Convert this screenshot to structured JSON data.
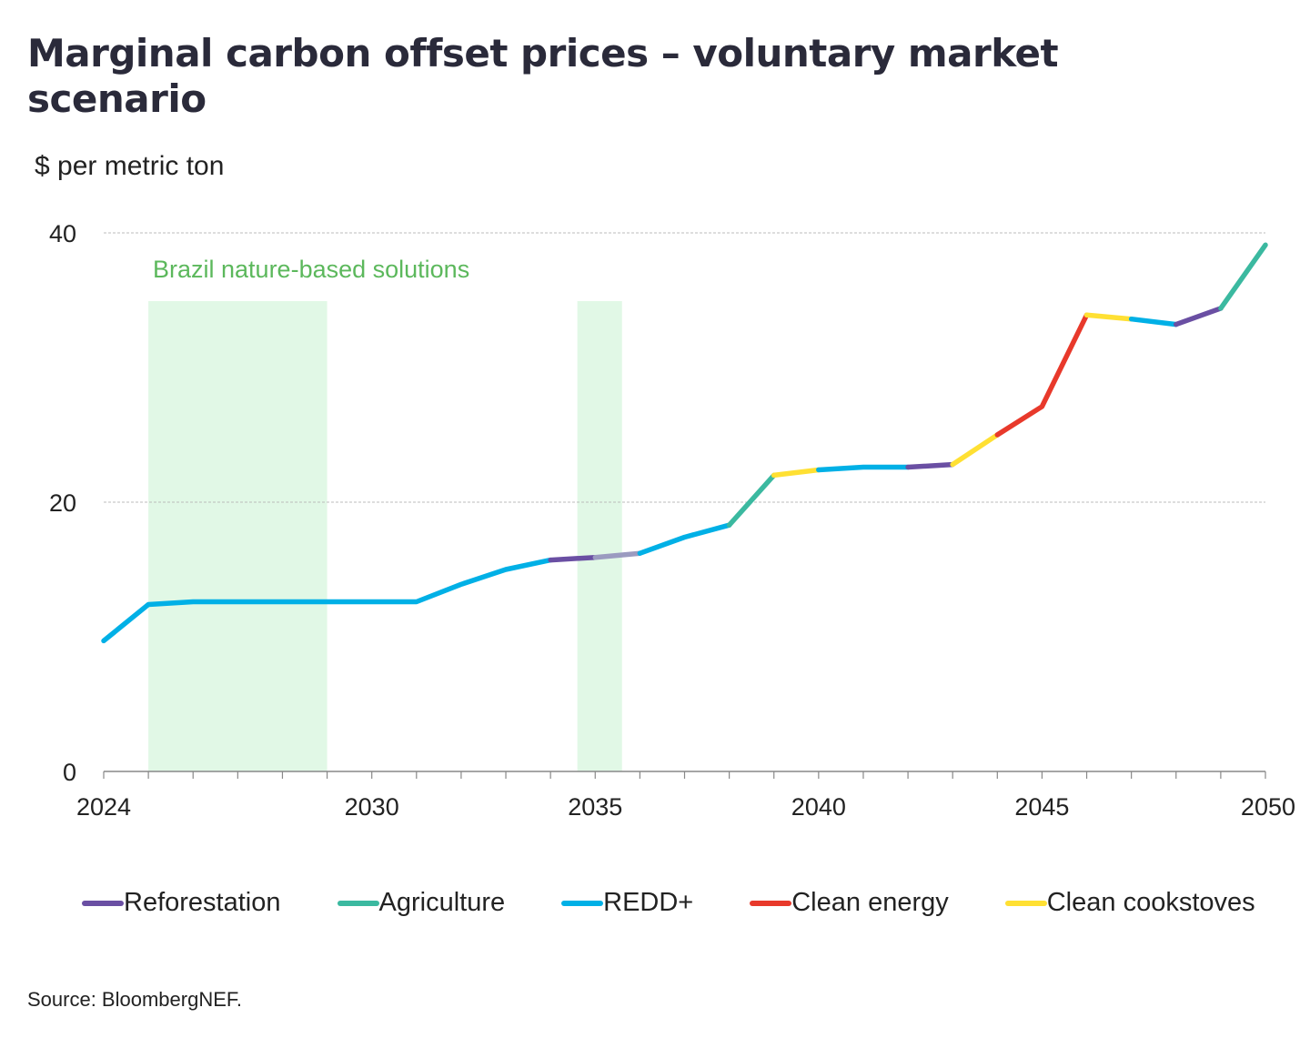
{
  "chart_data": {
    "type": "line",
    "title": "Marginal carbon offset prices – voluntary market scenario",
    "ylabel": "$ per metric ton",
    "xlabel": "",
    "xlim": [
      2024,
      2050
    ],
    "ylim": [
      0,
      40
    ],
    "y_ticks": [
      0,
      20,
      40
    ],
    "x_tick_labels": [
      2024,
      2030,
      2035,
      2040,
      2045,
      2050
    ],
    "grid": true,
    "legend_position": "bottom",
    "annotation": {
      "text": "Brazil nature-based solutions",
      "color": "#5cb85c",
      "bands": [
        [
          2025,
          2029
        ],
        [
          2034.6,
          2035.6
        ]
      ],
      "band_color": "#e1f8e6"
    },
    "series": [
      {
        "name": "Reforestation",
        "color": "#6a4fa3"
      },
      {
        "name": "Agriculture",
        "color": "#3bb9a0"
      },
      {
        "name": "REDD+",
        "color": "#00b0e6"
      },
      {
        "name": "Clean energy",
        "color": "#e8392b"
      },
      {
        "name": "Clean cookstoves",
        "color": "#ffe033"
      }
    ],
    "points": [
      {
        "x": 2024,
        "y": 9.7
      },
      {
        "x": 2025,
        "y": 12.4
      },
      {
        "x": 2026,
        "y": 12.6
      },
      {
        "x": 2027,
        "y": 12.6
      },
      {
        "x": 2028,
        "y": 12.6
      },
      {
        "x": 2029,
        "y": 12.6
      },
      {
        "x": 2030,
        "y": 12.6
      },
      {
        "x": 2031,
        "y": 12.6
      },
      {
        "x": 2032,
        "y": 13.9
      },
      {
        "x": 2033,
        "y": 15.0
      },
      {
        "x": 2034,
        "y": 15.7
      },
      {
        "x": 2035,
        "y": 15.9
      },
      {
        "x": 2036,
        "y": 16.2
      },
      {
        "x": 2037,
        "y": 17.4
      },
      {
        "x": 2038,
        "y": 18.3
      },
      {
        "x": 2039,
        "y": 22.0
      },
      {
        "x": 2040,
        "y": 22.4
      },
      {
        "x": 2041,
        "y": 22.6
      },
      {
        "x": 2042,
        "y": 22.6
      },
      {
        "x": 2043,
        "y": 22.8
      },
      {
        "x": 2044,
        "y": 25.0
      },
      {
        "x": 2045,
        "y": 27.1
      },
      {
        "x": 2046,
        "y": 33.9
      },
      {
        "x": 2047,
        "y": 33.6
      },
      {
        "x": 2048,
        "y": 33.2
      },
      {
        "x": 2049,
        "y": 34.4
      },
      {
        "x": 2050,
        "y": 39.1
      }
    ],
    "segments": [
      {
        "from": 2024,
        "to": 2034,
        "series": "REDD+"
      },
      {
        "from": 2034,
        "to": 2035,
        "series": "Reforestation"
      },
      {
        "from": 2035,
        "to": 2036,
        "series": "Reforestation",
        "color": "#9b9bc0"
      },
      {
        "from": 2036,
        "to": 2038,
        "series": "REDD+"
      },
      {
        "from": 2038,
        "to": 2039,
        "series": "Agriculture"
      },
      {
        "from": 2039,
        "to": 2040,
        "series": "Clean cookstoves"
      },
      {
        "from": 2040,
        "to": 2042,
        "series": "REDD+"
      },
      {
        "from": 2042,
        "to": 2043,
        "series": "Reforestation"
      },
      {
        "from": 2043,
        "to": 2044,
        "series": "Clean cookstoves"
      },
      {
        "from": 2044,
        "to": 2046,
        "series": "Clean energy"
      },
      {
        "from": 2046,
        "to": 2047,
        "series": "Clean cookstoves"
      },
      {
        "from": 2047,
        "to": 2048,
        "series": "REDD+"
      },
      {
        "from": 2048,
        "to": 2049,
        "series": "Reforestation"
      },
      {
        "from": 2049,
        "to": 2050,
        "series": "Agriculture"
      }
    ],
    "source": "Source: BloombergNEF."
  }
}
